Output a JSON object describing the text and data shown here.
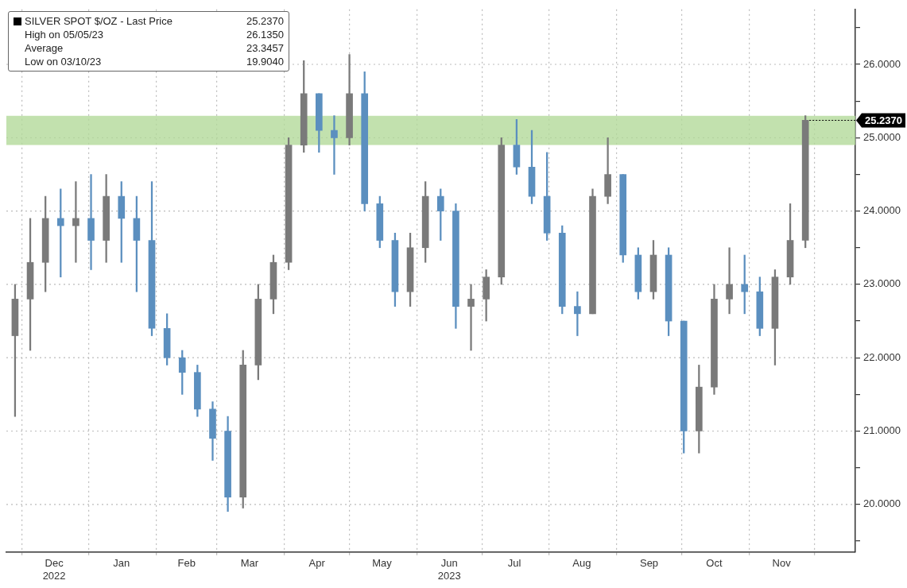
{
  "chart_data": {
    "type": "candlestick",
    "x": [
      "2022-11-28",
      "2022-12-05",
      "2022-12-12",
      "2022-12-19",
      "2022-12-26",
      "2023-01-02",
      "2023-01-09",
      "2023-01-16",
      "2023-01-23",
      "2023-01-30",
      "2023-02-06",
      "2023-02-13",
      "2023-02-20",
      "2023-02-27",
      "2023-03-06",
      "2023-03-13",
      "2023-03-20",
      "2023-03-27",
      "2023-04-03",
      "2023-04-10",
      "2023-04-17",
      "2023-04-24",
      "2023-05-01",
      "2023-05-08",
      "2023-05-15",
      "2023-05-22",
      "2023-05-29",
      "2023-06-05",
      "2023-06-12",
      "2023-06-19",
      "2023-06-26",
      "2023-07-03",
      "2023-07-10",
      "2023-07-17",
      "2023-07-24",
      "2023-07-31",
      "2023-08-07",
      "2023-08-14",
      "2023-08-21",
      "2023-08-28",
      "2023-09-04",
      "2023-09-11",
      "2023-09-18",
      "2023-09-25",
      "2023-10-02",
      "2023-10-09",
      "2023-10-16",
      "2023-10-23",
      "2023-10-30",
      "2023-11-06",
      "2023-11-13",
      "2023-11-20",
      "2023-11-27"
    ],
    "series": [
      {
        "name": "SILVER SPOT $/OZ - Last Price",
        "ohlc": [
          [
            22.3,
            23.0,
            21.2,
            22.8
          ],
          [
            22.8,
            23.9,
            22.1,
            23.3
          ],
          [
            23.3,
            24.2,
            22.9,
            23.9
          ],
          [
            23.9,
            24.3,
            23.1,
            23.8
          ],
          [
            23.8,
            24.4,
            23.3,
            23.9
          ],
          [
            23.9,
            24.5,
            23.2,
            23.6
          ],
          [
            23.6,
            24.5,
            23.3,
            24.2
          ],
          [
            24.2,
            24.4,
            23.3,
            23.9
          ],
          [
            23.9,
            24.2,
            22.9,
            23.6
          ],
          [
            23.6,
            24.4,
            22.3,
            22.4
          ],
          [
            22.4,
            22.6,
            21.9,
            22.0
          ],
          [
            22.0,
            22.1,
            21.5,
            21.8
          ],
          [
            21.8,
            21.9,
            21.2,
            21.3
          ],
          [
            21.3,
            21.4,
            20.6,
            20.9
          ],
          [
            21.0,
            21.2,
            19.904,
            20.1
          ],
          [
            20.1,
            22.1,
            19.95,
            21.9
          ],
          [
            21.9,
            23.0,
            21.7,
            22.8
          ],
          [
            22.8,
            23.4,
            22.6,
            23.3
          ],
          [
            23.3,
            25.0,
            23.2,
            24.9
          ],
          [
            24.9,
            26.05,
            24.8,
            25.6
          ],
          [
            25.6,
            25.6,
            24.8,
            25.1
          ],
          [
            25.1,
            25.3,
            24.5,
            25.0
          ],
          [
            25.0,
            26.135,
            24.9,
            25.6
          ],
          [
            25.6,
            25.9,
            24.0,
            24.1
          ],
          [
            24.1,
            24.2,
            23.5,
            23.6
          ],
          [
            23.6,
            23.7,
            22.7,
            22.9
          ],
          [
            22.9,
            23.7,
            22.7,
            23.5
          ],
          [
            23.5,
            24.4,
            23.3,
            24.2
          ],
          [
            24.2,
            24.3,
            23.6,
            24.0
          ],
          [
            24.0,
            24.1,
            22.4,
            22.7
          ],
          [
            22.7,
            23.0,
            22.1,
            22.8
          ],
          [
            22.8,
            23.2,
            22.5,
            23.1
          ],
          [
            23.1,
            25.0,
            23.0,
            24.9
          ],
          [
            24.9,
            25.25,
            24.5,
            24.6
          ],
          [
            24.6,
            25.1,
            24.1,
            24.2
          ],
          [
            24.2,
            24.8,
            23.6,
            23.7
          ],
          [
            23.7,
            23.8,
            22.6,
            22.7
          ],
          [
            22.7,
            22.9,
            22.3,
            22.6
          ],
          [
            22.6,
            24.3,
            22.6,
            24.2
          ],
          [
            24.2,
            25.0,
            24.1,
            24.5
          ],
          [
            24.5,
            24.5,
            23.3,
            23.4
          ],
          [
            23.4,
            23.5,
            22.8,
            22.9
          ],
          [
            22.9,
            23.6,
            22.8,
            23.4
          ],
          [
            23.4,
            23.5,
            22.3,
            22.5
          ],
          [
            22.5,
            22.5,
            20.7,
            21.0
          ],
          [
            21.0,
            21.9,
            20.7,
            21.6
          ],
          [
            21.6,
            23.0,
            21.5,
            22.8
          ],
          [
            22.8,
            23.5,
            22.6,
            23.0
          ],
          [
            23.0,
            23.4,
            22.6,
            22.9
          ],
          [
            22.9,
            23.1,
            22.3,
            22.4
          ],
          [
            22.4,
            23.2,
            21.9,
            23.1
          ],
          [
            23.1,
            24.1,
            23.0,
            23.6
          ],
          [
            23.6,
            25.3,
            23.5,
            25.237
          ]
        ],
        "colors": [
          "#7a7a7a",
          "#7a7a7a",
          "#7a7a7a",
          "#5b8fbf",
          "#7a7a7a",
          "#5b8fbf",
          "#7a7a7a",
          "#5b8fbf",
          "#5b8fbf",
          "#5b8fbf",
          "#5b8fbf",
          "#5b8fbf",
          "#5b8fbf",
          "#5b8fbf",
          "#5b8fbf",
          "#7a7a7a",
          "#7a7a7a",
          "#7a7a7a",
          "#7a7a7a",
          "#7a7a7a",
          "#5b8fbf",
          "#5b8fbf",
          "#7a7a7a",
          "#5b8fbf",
          "#5b8fbf",
          "#5b8fbf",
          "#7a7a7a",
          "#7a7a7a",
          "#5b8fbf",
          "#5b8fbf",
          "#7a7a7a",
          "#7a7a7a",
          "#7a7a7a",
          "#5b8fbf",
          "#5b8fbf",
          "#5b8fbf",
          "#5b8fbf",
          "#5b8fbf",
          "#7a7a7a",
          "#7a7a7a",
          "#5b8fbf",
          "#5b8fbf",
          "#7a7a7a",
          "#5b8fbf",
          "#5b8fbf",
          "#7a7a7a",
          "#7a7a7a",
          "#7a7a7a",
          "#5b8fbf",
          "#5b8fbf",
          "#7a7a7a",
          "#7a7a7a",
          "#7a7a7a"
        ]
      }
    ],
    "xlim": [
      "2022-11-24",
      "2023-12-20"
    ],
    "xticks": [
      {
        "value": "2022-12-01",
        "label": null
      },
      {
        "value": "2022-12-16",
        "label": "Dec\n2022"
      },
      {
        "value": "2023-01-01",
        "label": null
      },
      {
        "value": "2023-01-16",
        "label": "Jan"
      },
      {
        "value": "2023-02-01",
        "label": null
      },
      {
        "value": "2023-02-15",
        "label": "Feb"
      },
      {
        "value": "2023-03-01",
        "label": null
      },
      {
        "value": "2023-03-16",
        "label": "Mar"
      },
      {
        "value": "2023-04-01",
        "label": null
      },
      {
        "value": "2023-04-16",
        "label": "Apr"
      },
      {
        "value": "2023-05-01",
        "label": null
      },
      {
        "value": "2023-05-16",
        "label": "May"
      },
      {
        "value": "2023-06-01",
        "label": null
      },
      {
        "value": "2023-06-16",
        "label": "Jun\n2023"
      },
      {
        "value": "2023-07-01",
        "label": null
      },
      {
        "value": "2023-07-16",
        "label": "Jul"
      },
      {
        "value": "2023-08-01",
        "label": null
      },
      {
        "value": "2023-08-16",
        "label": "Aug"
      },
      {
        "value": "2023-09-01",
        "label": null
      },
      {
        "value": "2023-09-16",
        "label": "Sep"
      },
      {
        "value": "2023-10-01",
        "label": null
      },
      {
        "value": "2023-10-16",
        "label": "Oct"
      },
      {
        "value": "2023-11-01",
        "label": null
      },
      {
        "value": "2023-11-16",
        "label": "Nov"
      },
      {
        "value": "2023-12-01",
        "label": null
      }
    ],
    "ylim": [
      19.35,
      26.75
    ],
    "yticks": [
      {
        "value": 19.5,
        "label": null
      },
      {
        "value": 20,
        "label": "20.0000"
      },
      {
        "value": 20.5,
        "label": null
      },
      {
        "value": 21,
        "label": "21.0000"
      },
      {
        "value": 21.5,
        "label": null
      },
      {
        "value": 22,
        "label": "22.0000"
      },
      {
        "value": 22.5,
        "label": null
      },
      {
        "value": 23,
        "label": "23.0000"
      },
      {
        "value": 23.5,
        "label": null
      },
      {
        "value": 24,
        "label": "24.0000"
      },
      {
        "value": 24.5,
        "label": null
      },
      {
        "value": 25,
        "label": "25.0000"
      },
      {
        "value": 25.5,
        "label": null
      },
      {
        "value": 26,
        "label": "26.0000"
      },
      {
        "value": 26.5,
        "label": null
      }
    ],
    "bands": [
      {
        "axis": "y",
        "from": 24.9,
        "to": 25.3,
        "color": "#b3d99a"
      }
    ],
    "annotations": [
      {
        "text": "25.2370",
        "x": "2023-11-27",
        "y": 25.237
      },
      "High on 05/05/23",
      "26.1350",
      "Average",
      "23.3457",
      "Low on 03/10/23",
      "19.9040"
    ],
    "grid": true,
    "legend": "top left"
  }
}
